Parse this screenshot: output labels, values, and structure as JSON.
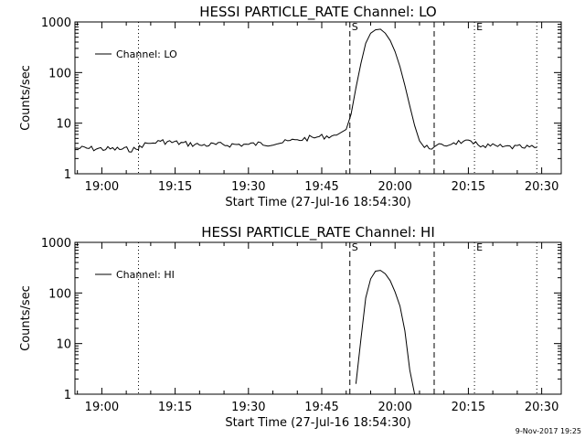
{
  "chart_data": [
    {
      "type": "line",
      "title": "HESSI PARTICLE_RATE Channel: LO",
      "xlabel": "Start Time (27-Jul-16 18:54:30)",
      "ylabel": "Counts/sec",
      "y_scale": "log",
      "ylim": [
        1,
        1000
      ],
      "xlim": [
        "18:54:30",
        "20:34:00"
      ],
      "x_ticks": [
        "19:00",
        "19:15",
        "19:30",
        "19:45",
        "20:00",
        "20:15",
        "20:30"
      ],
      "y_ticks": [
        "1",
        "10",
        "100",
        "1000"
      ],
      "legend": {
        "label": "Channel: LO",
        "placement": "top-left"
      },
      "markers": [
        {
          "time": "19:07:30",
          "style": "dotted",
          "label": ""
        },
        {
          "time": "19:50:45",
          "style": "dashed",
          "label": "S"
        },
        {
          "time": "20:08:00",
          "style": "dashed",
          "label": ""
        },
        {
          "time": "20:16:15",
          "style": "dotted",
          "label": "E"
        },
        {
          "time": "20:29:00",
          "style": "dotted",
          "label": ""
        }
      ],
      "series": [
        {
          "x": [
            "18:54:30",
            "19:07:30",
            "19:07:40",
            "19:10:00",
            "19:12:00",
            "19:20:00",
            "19:30:00",
            "19:37:00",
            "19:40:00",
            "19:44:00",
            "19:48:00",
            "19:50:00",
            "19:51:00",
            "19:52:00",
            "19:53:00",
            "19:54:00",
            "19:55:00",
            "19:56:00",
            "19:57:00",
            "19:58:00",
            "19:59:00",
            "20:00:00",
            "20:01:00",
            "20:02:00",
            "20:03:00",
            "20:04:00",
            "20:05:00",
            "20:06:00",
            "20:08:00",
            "20:10:00",
            "20:12:00",
            "20:14:00",
            "20:16:00",
            "20:18:00",
            "20:22:00",
            "20:26:00",
            "20:29:00"
          ],
          "y": [
            3.2,
            3.0,
            3.6,
            4.0,
            4.4,
            3.7,
            3.8,
            4.1,
            4.7,
            5.3,
            5.8,
            7.5,
            15,
            50,
            150,
            380,
            600,
            700,
            720,
            600,
            430,
            260,
            130,
            56,
            22,
            9,
            4.5,
            3.3,
            3.4,
            3.6,
            4.1,
            4.4,
            3.9,
            3.6,
            3.4,
            3.3,
            3.3
          ]
        }
      ]
    },
    {
      "type": "line",
      "title": "HESSI PARTICLE_RATE Channel: HI",
      "xlabel": "Start Time (27-Jul-16 18:54:30)",
      "ylabel": "Counts/sec",
      "y_scale": "log",
      "ylim": [
        1,
        1000
      ],
      "xlim": [
        "18:54:30",
        "20:34:00"
      ],
      "x_ticks": [
        "19:00",
        "19:15",
        "19:30",
        "19:45",
        "20:00",
        "20:15",
        "20:30"
      ],
      "y_ticks": [
        "1",
        "10",
        "100",
        "1000"
      ],
      "legend": {
        "label": "Channel: HI",
        "placement": "top-left"
      },
      "markers": [
        {
          "time": "19:07:30",
          "style": "dotted",
          "label": ""
        },
        {
          "time": "19:50:45",
          "style": "dashed",
          "label": "S"
        },
        {
          "time": "20:08:00",
          "style": "dashed",
          "label": ""
        },
        {
          "time": "20:16:15",
          "style": "dotted",
          "label": "E"
        },
        {
          "time": "20:29:00",
          "style": "dotted",
          "label": ""
        }
      ],
      "series": [
        {
          "x": [
            "19:52:00",
            "19:53:00",
            "19:54:00",
            "19:55:00",
            "19:56:00",
            "19:57:00",
            "19:58:00",
            "19:59:00",
            "20:00:00",
            "20:01:00",
            "20:02:00",
            "20:03:00",
            "20:04:00"
          ],
          "y": [
            1.6,
            12,
            80,
            190,
            270,
            280,
            240,
            175,
            105,
            55,
            18,
            3,
            1
          ]
        }
      ]
    }
  ],
  "footer": "9-Nov-2017 19:25"
}
